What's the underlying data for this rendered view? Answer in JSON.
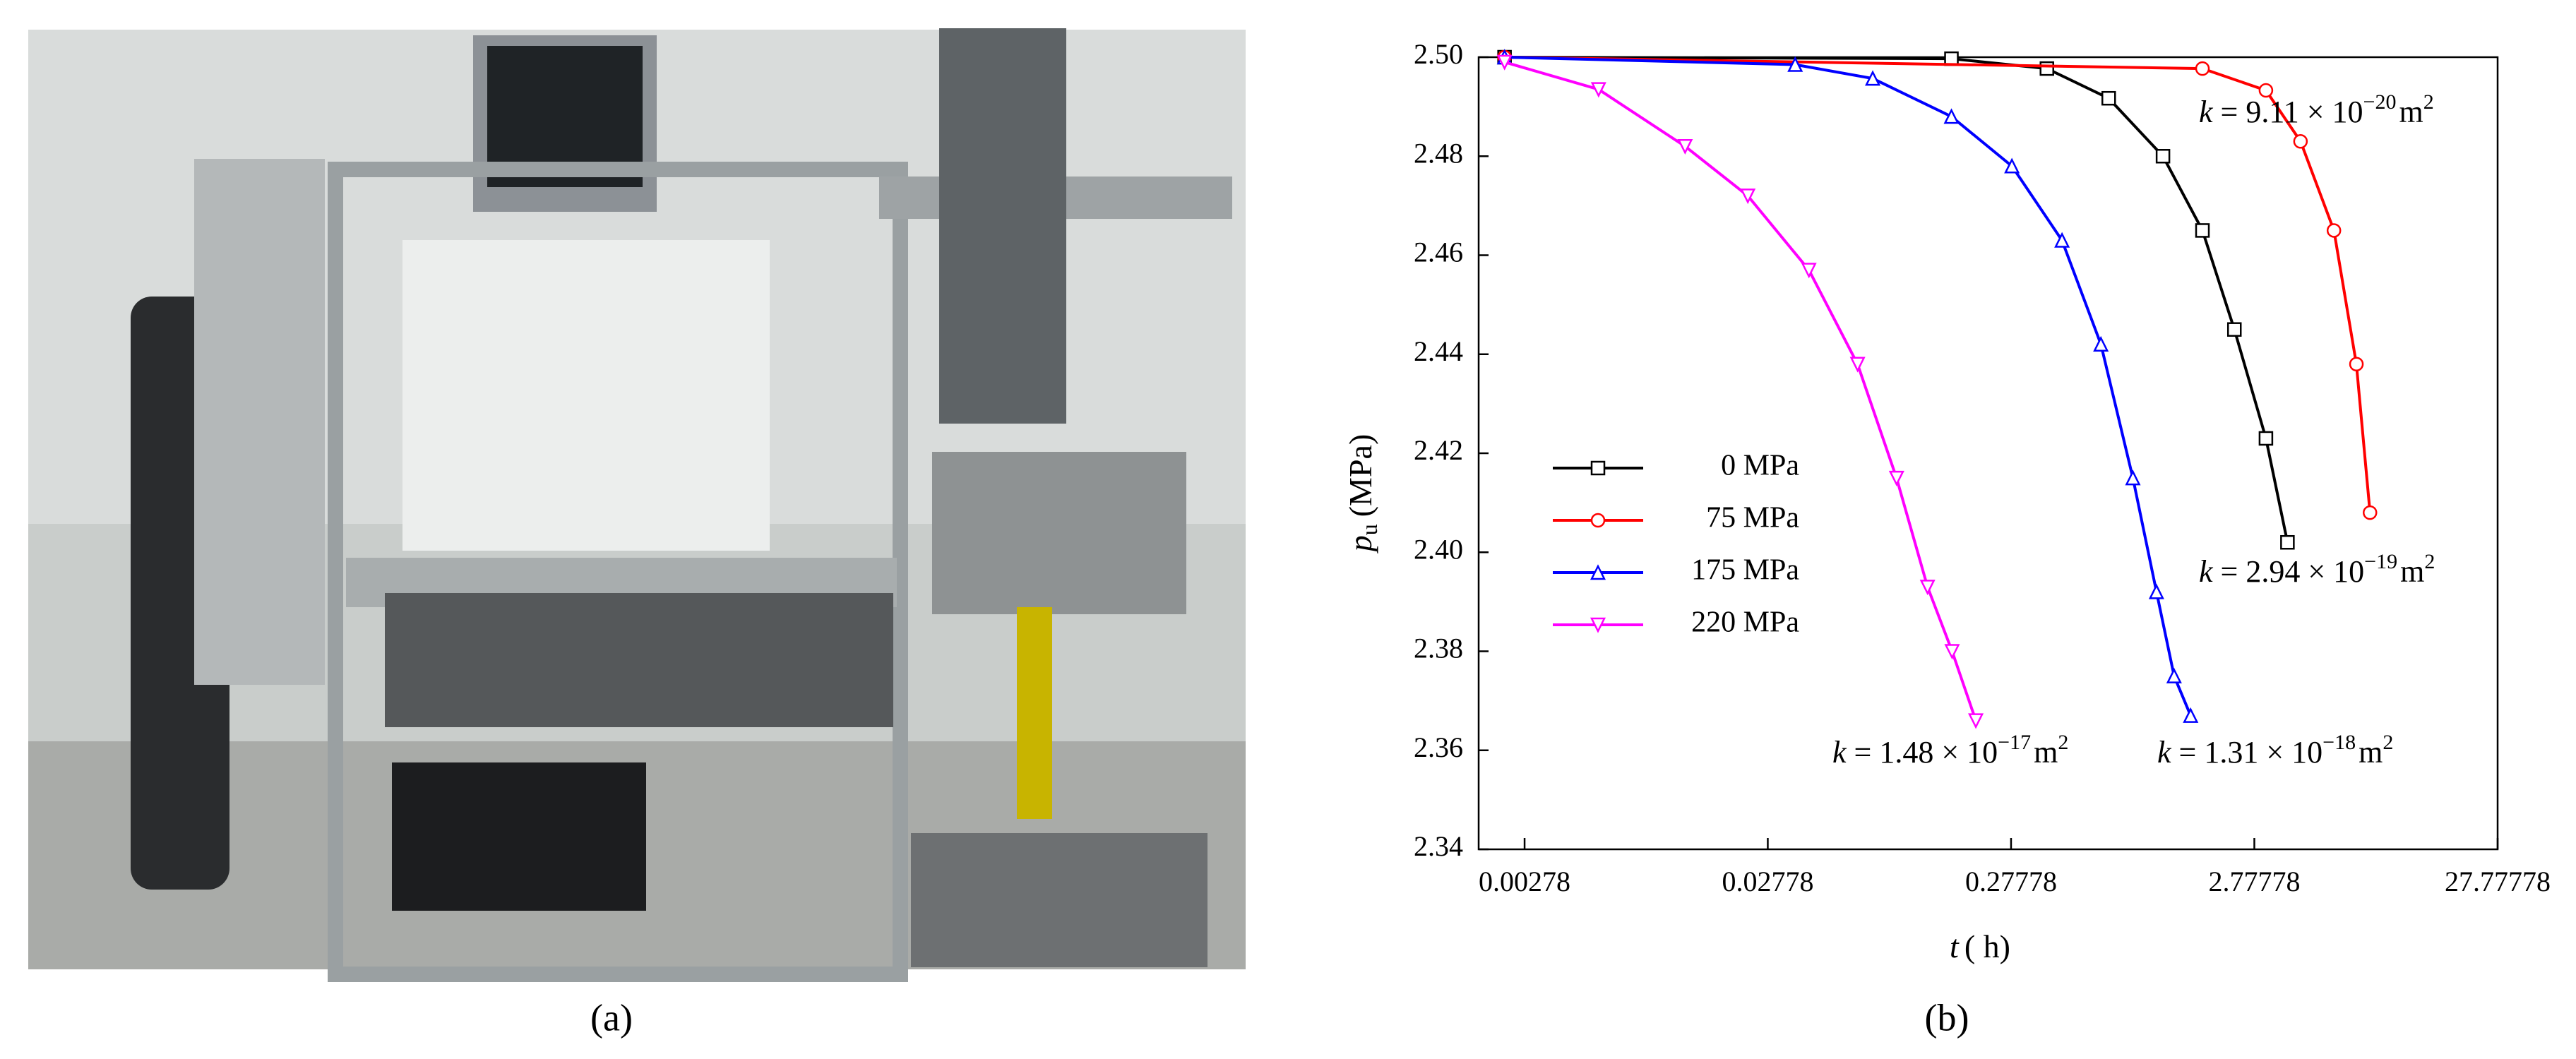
{
  "panel_labels": [
    "(a)",
    "(b)"
  ],
  "chart_data": {
    "type": "line",
    "xscale": "log",
    "x_label": {
      "symbol": "t",
      "unit": "( h)"
    },
    "y_label": {
      "symbol": "p",
      "subscript": "u",
      "unit": "(MPa)"
    },
    "xlim": [
      0.0018,
      27.77778
    ],
    "xticks": [
      0.00278,
      0.02778,
      0.27778,
      2.77778,
      27.77778
    ],
    "ylim": [
      2.34,
      2.5
    ],
    "yticks": [
      2.34,
      2.36,
      2.38,
      {
        "value": 2.4,
        "label": "2.40"
      },
      2.42,
      2.44,
      2.46,
      2.48,
      {
        "value": 2.5,
        "label": "2.50"
      }
    ],
    "legend": "left",
    "series": [
      {
        "name": "0 MPa",
        "color": "#000000",
        "marker": "square",
        "x": [
          0.0023,
          0.158,
          0.39,
          0.7,
          1.17,
          1.7,
          2.3,
          3.1,
          3.8
        ],
        "values": [
          2.5,
          2.4997,
          2.4977,
          2.4917,
          2.48,
          2.465,
          2.445,
          2.423,
          2.402
        ]
      },
      {
        "name": "75 MPa",
        "color": "#ff0000",
        "marker": "circle",
        "x": [
          0.0023,
          1.7,
          3.1,
          4.3,
          5.9,
          7.3,
          8.3
        ],
        "values": [
          2.5,
          2.4977,
          2.4933,
          2.483,
          2.465,
          2.438,
          2.408
        ]
      },
      {
        "name": "175 MPa",
        "color": "#0000ff",
        "marker": "triangle-up",
        "x": [
          0.0023,
          0.036,
          0.075,
          0.158,
          0.28,
          0.45,
          0.65,
          0.88,
          1.1,
          1.3,
          1.52
        ],
        "values": [
          2.5,
          2.4985,
          2.4957,
          2.488,
          2.478,
          2.463,
          2.442,
          2.415,
          2.392,
          2.375,
          2.367
        ]
      },
      {
        "name": "220 MPa",
        "color": "#ff00ff",
        "marker": "triangle-down",
        "x": [
          0.0023,
          0.0056,
          0.0127,
          0.023,
          0.041,
          0.065,
          0.094,
          0.126,
          0.159,
          0.199
        ],
        "values": [
          2.499,
          2.4935,
          2.482,
          2.472,
          2.457,
          2.438,
          2.415,
          2.393,
          2.38,
          2.366
        ]
      }
    ],
    "annotations": [
      {
        "symbol": "k",
        "mantissa": " = 9.11 × 10",
        "exponent": "−20",
        "unit": "m",
        "unit_power": "2"
      },
      {
        "symbol": "k",
        "mantissa": " = 2.94 × 10",
        "exponent": "−19",
        "unit": "m",
        "unit_power": "2"
      },
      {
        "symbol": "k",
        "mantissa": " = 1.48 × 10",
        "exponent": "−17",
        "unit": "m",
        "unit_power": "2"
      },
      {
        "symbol": "k",
        "mantissa": " = 1.31 × 10",
        "exponent": "−18",
        "unit": "m",
        "unit_power": "2"
      }
    ]
  }
}
